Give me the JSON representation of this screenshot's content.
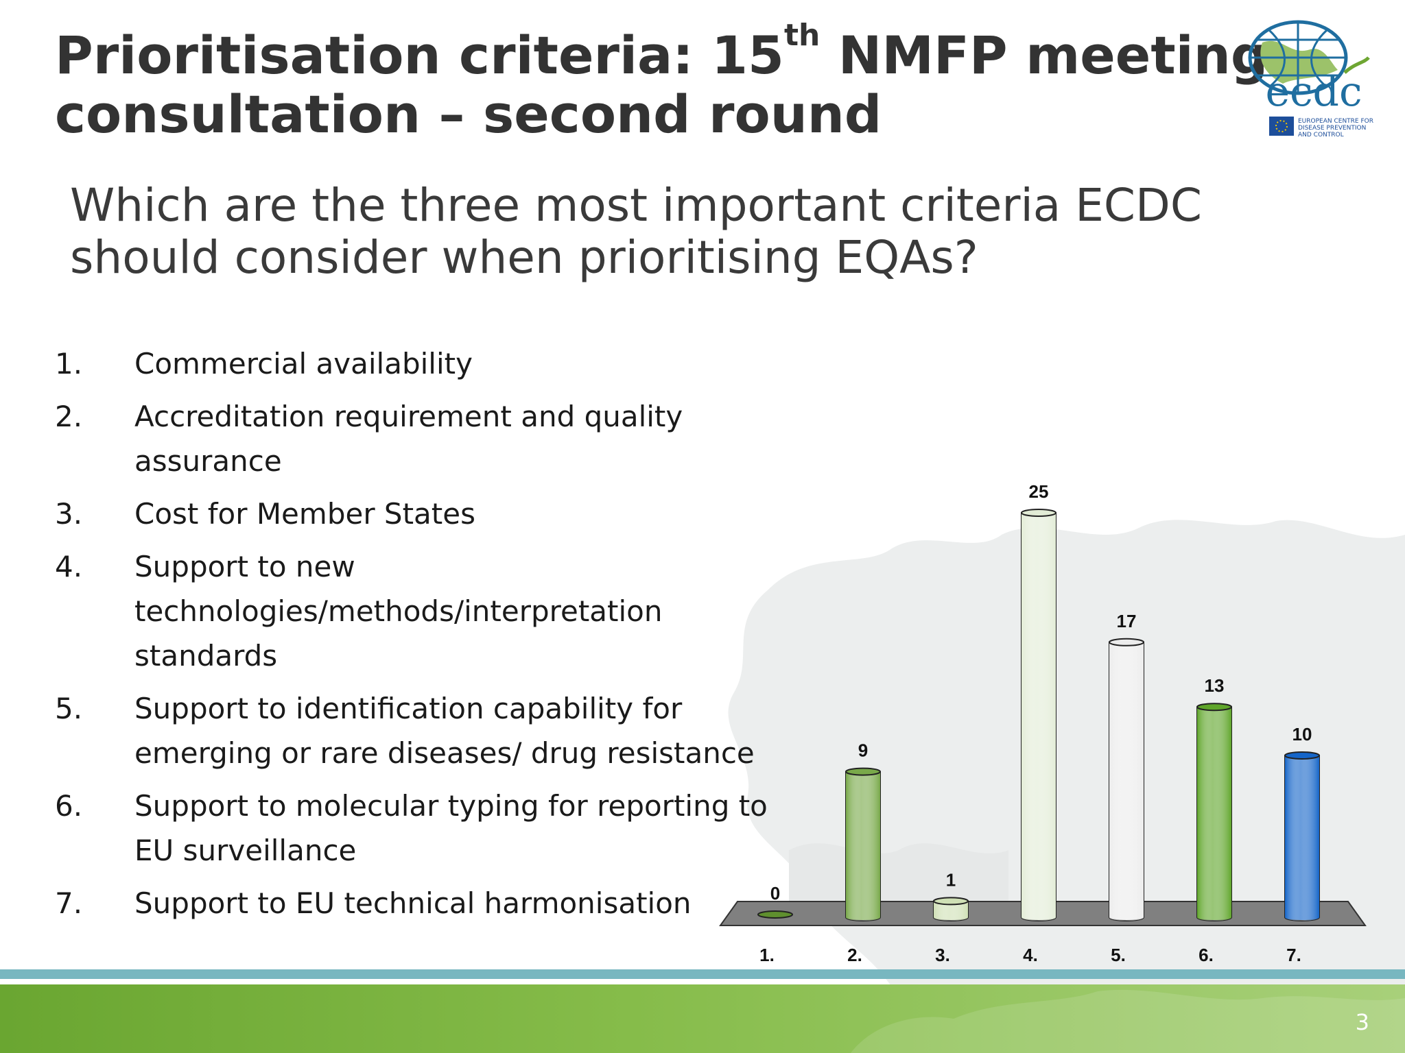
{
  "slide": {
    "title_part1": "Prioritisation criteria: 15",
    "title_sup": "th",
    "title_part2": " NMFP meeting",
    "title_line2": "consultation – second round",
    "question": "Which are the three most important criteria ECDC should consider when prioritising EQAs?",
    "slide_number": "3"
  },
  "logo": {
    "wordmark": "ecdc",
    "line1": "EUROPEAN CENTRE FOR",
    "line2": "DISEASE PREVENTION",
    "line3": "AND CONTROL"
  },
  "criteria": [
    {
      "num": "1.",
      "text": "Commercial availability"
    },
    {
      "num": "2.",
      "text": "Accreditation requirement and quality assurance"
    },
    {
      "num": "3.",
      "text": "Cost for Member States"
    },
    {
      "num": "4.",
      "text": "Support to new technologies/methods/interpretation standards"
    },
    {
      "num": "5.",
      "text": "Support to identification capability for emerging or rare diseases/ drug resistance"
    },
    {
      "num": "6.",
      "text": "Support to molecular typing for reporting to EU surveillance"
    },
    {
      "num": "7.",
      "text": "Support to EU technical harmonisation"
    }
  ],
  "chart_data": {
    "type": "bar",
    "categories": [
      "1.",
      "2.",
      "3.",
      "4.",
      "5.",
      "6.",
      "7."
    ],
    "values": [
      0,
      9,
      1,
      25,
      17,
      13,
      10
    ],
    "data_labels": [
      "0",
      "9",
      "1",
      "25",
      "17",
      "13",
      "10"
    ],
    "colors": [
      "#5f8f2e",
      "#79a94a",
      "#cfe0b5",
      "#e2ecd6",
      "#ececec",
      "#5fa52a",
      "#1565c8"
    ],
    "ylim": [
      0,
      25
    ],
    "grid": false,
    "legend": "none",
    "style": "3d-cylinder"
  },
  "theme": {
    "footer_teal": "#78b7c0",
    "footer_green": "#7ab63f",
    "title_color": "#333333"
  }
}
